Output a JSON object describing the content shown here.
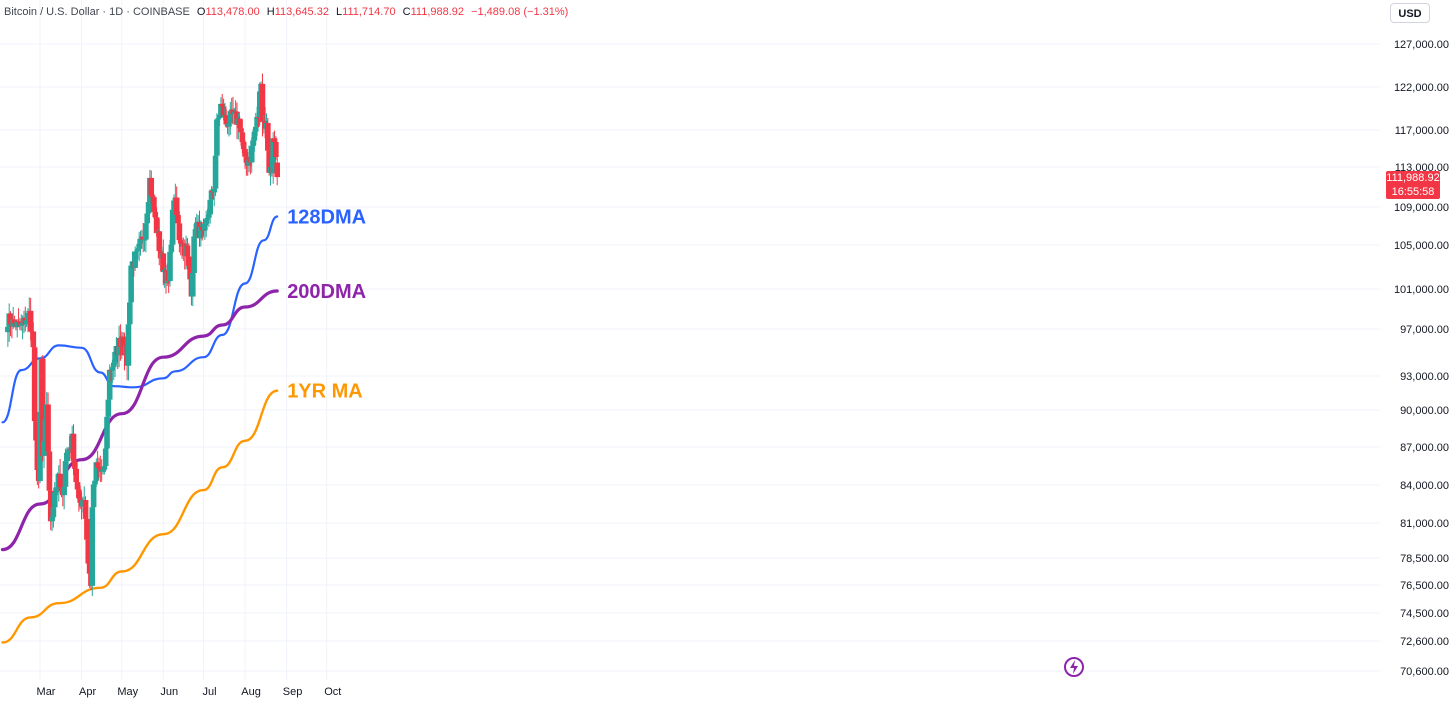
{
  "legend": {
    "symbol": "Bitcoin / U.S. Dollar · 1D · COINBASE",
    "open_label": "O",
    "open": "113,478.00",
    "high_label": "H",
    "high": "113,645.32",
    "low_label": "L",
    "low": "111,714.70",
    "close_label": "C",
    "close": "111,988.92",
    "change": "−1,489.08 (−1.31%)"
  },
  "currency": "USD",
  "last_price": {
    "price": "111,988.92",
    "countdown": "16:55:58"
  },
  "colors": {
    "up": "#26a69a",
    "down": "#f23645",
    "ma128": "#2962ff",
    "ma200": "#8e24aa",
    "ma1yr": "#ff9800"
  },
  "chart_data": {
    "type": "candlestick",
    "ylim": [
      70600,
      127000
    ],
    "x_axis_labels": [
      "Mar",
      "Apr",
      "May",
      "Jun",
      "Jul",
      "Aug",
      "Sep",
      "Oct"
    ],
    "y_axis_labels": [
      {
        "label": "127,000.00",
        "value": 127000
      },
      {
        "label": "122,000.00",
        "value": 122000
      },
      {
        "label": "117,000.00",
        "value": 117000
      },
      {
        "label": "113,000.00",
        "value": 113000
      },
      {
        "label": "109,000.00",
        "value": 109000
      },
      {
        "label": "105,000.00",
        "value": 105000
      },
      {
        "label": "101,000.00",
        "value": 101000
      },
      {
        "label": "97,000.00",
        "value": 97000
      },
      {
        "label": "93,000.00",
        "value": 93000
      },
      {
        "label": "90,000.00",
        "value": 90000
      },
      {
        "label": "87,000.00",
        "value": 87000
      },
      {
        "label": "84,000.00",
        "value": 84000
      },
      {
        "label": "81,000.00",
        "value": 81000
      },
      {
        "label": "78,500.00",
        "value": 78500
      },
      {
        "label": "76,500.00",
        "value": 76500
      },
      {
        "label": "74,500.00",
        "value": 74500
      },
      {
        "label": "72,600.00",
        "value": 72600
      },
      {
        "label": "70,600.00",
        "value": 70600
      }
    ],
    "close_path": [
      [
        "2025-02-05",
        98000
      ],
      [
        "2025-02-10",
        97500
      ],
      [
        "2025-02-15",
        97200
      ],
      [
        "2025-02-21",
        98500
      ],
      [
        "2025-02-24",
        95500
      ],
      [
        "2025-02-25",
        88500
      ],
      [
        "2025-02-28",
        84300
      ],
      [
        "2025-03-02",
        94200
      ],
      [
        "2025-03-03",
        86100
      ],
      [
        "2025-03-06",
        89900
      ],
      [
        "2025-03-09",
        80700
      ],
      [
        "2025-03-12",
        83700
      ],
      [
        "2025-03-15",
        84300
      ],
      [
        "2025-03-18",
        82700
      ],
      [
        "2025-03-20",
        86200
      ],
      [
        "2025-03-25",
        87500
      ],
      [
        "2025-03-30",
        82400
      ],
      [
        "2025-04-03",
        83100
      ],
      [
        "2025-04-06",
        78300
      ],
      [
        "2025-04-08",
        76300
      ],
      [
        "2025-04-09",
        82600
      ],
      [
        "2025-04-12",
        85300
      ],
      [
        "2025-04-18",
        84900
      ],
      [
        "2025-04-22",
        93400
      ],
      [
        "2025-04-26",
        94600
      ],
      [
        "2025-05-01",
        96500
      ],
      [
        "2025-05-05",
        94300
      ],
      [
        "2025-05-08",
        103200
      ],
      [
        "2025-05-13",
        104000
      ],
      [
        "2025-05-18",
        106400
      ],
      [
        "2025-05-22",
        111700
      ],
      [
        "2025-05-25",
        108500
      ],
      [
        "2025-05-30",
        104000
      ],
      [
        "2025-06-05",
        101500
      ],
      [
        "2025-06-09",
        110200
      ],
      [
        "2025-06-13",
        105900
      ],
      [
        "2025-06-18",
        104500
      ],
      [
        "2025-06-22",
        101000
      ],
      [
        "2025-06-25",
        107300
      ],
      [
        "2025-07-01",
        105700
      ],
      [
        "2025-07-04",
        108000
      ],
      [
        "2025-07-09",
        111300
      ],
      [
        "2025-07-11",
        117500
      ],
      [
        "2025-07-14",
        119800
      ],
      [
        "2025-07-18",
        117800
      ],
      [
        "2025-07-23",
        118600
      ],
      [
        "2025-07-28",
        117900
      ],
      [
        "2025-08-01",
        113300
      ],
      [
        "2025-08-05",
        114100
      ],
      [
        "2025-08-08",
        116700
      ],
      [
        "2025-08-11",
        118700
      ],
      [
        "2025-08-13",
        123300
      ],
      [
        "2025-08-14",
        118300
      ],
      [
        "2025-08-17",
        117400
      ],
      [
        "2025-08-19",
        112900
      ],
      [
        "2025-08-21",
        112500
      ],
      [
        "2025-08-22",
        116900
      ],
      [
        "2025-08-24",
        113500
      ],
      [
        "2025-08-25",
        111989
      ]
    ],
    "series": [
      {
        "name": "128DMA",
        "points": [
          [
            "2025-02-01",
            89000
          ],
          [
            "2025-02-15",
            93500
          ],
          [
            "2025-03-01",
            94500
          ],
          [
            "2025-03-15",
            95600
          ],
          [
            "2025-04-01",
            95400
          ],
          [
            "2025-04-15",
            93300
          ],
          [
            "2025-04-25",
            92100
          ],
          [
            "2025-05-10",
            92000
          ],
          [
            "2025-06-01",
            92800
          ],
          [
            "2025-06-10",
            93400
          ],
          [
            "2025-07-01",
            94600
          ],
          [
            "2025-07-15",
            96500
          ],
          [
            "2025-08-01",
            101500
          ],
          [
            "2025-08-15",
            105500
          ],
          [
            "2025-08-25",
            108000
          ]
        ]
      },
      {
        "name": "200DMA",
        "points": [
          [
            "2025-02-01",
            79100
          ],
          [
            "2025-03-01",
            82500
          ],
          [
            "2025-04-01",
            86000
          ],
          [
            "2025-05-01",
            89700
          ],
          [
            "2025-06-01",
            94600
          ],
          [
            "2025-07-01",
            96400
          ],
          [
            "2025-07-15",
            97400
          ],
          [
            "2025-08-01",
            99200
          ],
          [
            "2025-08-25",
            100800
          ]
        ]
      },
      {
        "name": "1YR MA",
        "points": [
          [
            "2025-02-01",
            72500
          ],
          [
            "2025-02-22",
            74200
          ],
          [
            "2025-03-15",
            75200
          ],
          [
            "2025-04-15",
            76300
          ],
          [
            "2025-05-01",
            77500
          ],
          [
            "2025-06-01",
            80200
          ],
          [
            "2025-07-01",
            83600
          ],
          [
            "2025-07-15",
            85400
          ],
          [
            "2025-08-01",
            87500
          ],
          [
            "2025-08-25",
            91700
          ]
        ]
      }
    ]
  }
}
